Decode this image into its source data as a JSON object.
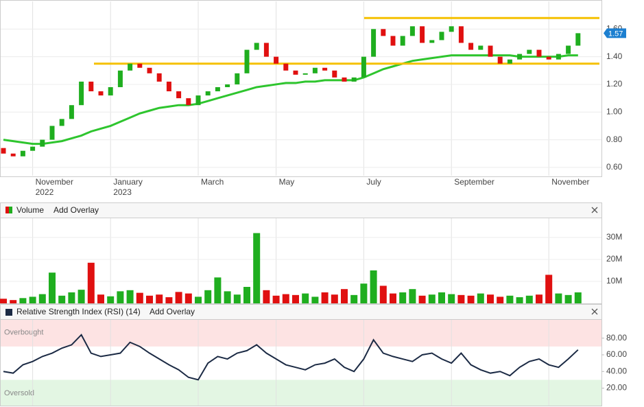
{
  "chart_data": [
    {
      "type": "candlestick",
      "categories": [
        null,
        null,
        null,
        "November 2022",
        null,
        null,
        null,
        null,
        null,
        null,
        null,
        "January 2023",
        null,
        null,
        null,
        null,
        null,
        null,
        null,
        null,
        "March",
        null,
        null,
        null,
        null,
        null,
        null,
        null,
        "May",
        null,
        null,
        null,
        null,
        null,
        null,
        null,
        null,
        "July",
        null,
        null,
        null,
        null,
        null,
        null,
        null,
        null,
        "September",
        null,
        null,
        null,
        null,
        null,
        null,
        null,
        null,
        null,
        "November",
        null,
        null,
        null
      ],
      "open": [
        0.74,
        0.7,
        0.68,
        0.72,
        0.75,
        0.8,
        0.9,
        0.95,
        1.05,
        1.22,
        1.15,
        1.12,
        1.18,
        1.3,
        1.35,
        1.32,
        1.28,
        1.22,
        1.15,
        1.1,
        1.05,
        1.12,
        1.15,
        1.18,
        1.2,
        1.28,
        1.45,
        1.5,
        1.4,
        1.35,
        1.3,
        1.27,
        1.28,
        1.32,
        1.3,
        1.25,
        1.22,
        1.25,
        1.4,
        1.6,
        1.55,
        1.48,
        1.55,
        1.62,
        1.5,
        1.52,
        1.58,
        1.62,
        1.5,
        1.45,
        1.48,
        1.4,
        1.35,
        1.38,
        1.42,
        1.45,
        1.4,
        1.38,
        1.42,
        1.48
      ],
      "close": [
        0.7,
        0.68,
        0.72,
        0.75,
        0.8,
        0.9,
        0.95,
        1.05,
        1.22,
        1.15,
        1.12,
        1.18,
        1.3,
        1.35,
        1.32,
        1.28,
        1.22,
        1.15,
        1.1,
        1.05,
        1.12,
        1.15,
        1.18,
        1.2,
        1.28,
        1.45,
        1.5,
        1.4,
        1.35,
        1.3,
        1.27,
        1.28,
        1.32,
        1.3,
        1.25,
        1.22,
        1.25,
        1.4,
        1.6,
        1.55,
        1.48,
        1.55,
        1.62,
        1.5,
        1.52,
        1.58,
        1.62,
        1.5,
        1.45,
        1.48,
        1.4,
        1.35,
        1.38,
        1.42,
        1.45,
        1.4,
        1.38,
        1.42,
        1.48,
        1.57
      ],
      "up_color": "#1fae1f",
      "down_color": "#e01010",
      "ma": {
        "color": "#2ec52e",
        "values": [
          0.8,
          0.79,
          0.78,
          0.77,
          0.77,
          0.78,
          0.79,
          0.81,
          0.83,
          0.86,
          0.88,
          0.9,
          0.93,
          0.96,
          0.99,
          1.01,
          1.03,
          1.04,
          1.05,
          1.05,
          1.06,
          1.08,
          1.1,
          1.12,
          1.14,
          1.16,
          1.18,
          1.19,
          1.2,
          1.21,
          1.21,
          1.22,
          1.22,
          1.23,
          1.23,
          1.23,
          1.23,
          1.25,
          1.28,
          1.31,
          1.33,
          1.35,
          1.37,
          1.38,
          1.39,
          1.4,
          1.41,
          1.41,
          1.41,
          1.41,
          1.41,
          1.41,
          1.41,
          1.4,
          1.4,
          1.4,
          1.4,
          1.4,
          1.41,
          1.41
        ]
      },
      "levels": [
        {
          "value": 1.35,
          "color": "#f5c000"
        },
        {
          "value": 1.68,
          "color": "#f5c000"
        }
      ],
      "last_value_label": "1.57",
      "last_color": "#1c7fd0",
      "ylim": [
        0.54,
        1.8
      ],
      "yticks": [
        {
          "value": 0.6,
          "label": "0.60"
        },
        {
          "value": 0.8,
          "label": "0.80"
        },
        {
          "value": 1.0,
          "label": "1.00"
        },
        {
          "value": 1.2,
          "label": "1.20"
        },
        {
          "value": 1.4,
          "label": "1.40"
        },
        {
          "value": 1.6,
          "label": "1.60"
        }
      ],
      "grid": true
    },
    {
      "type": "bar",
      "title": "Volume",
      "overlay_button": "Add Overlay",
      "values": [
        2100000,
        1500000,
        2400000,
        3000000,
        4200000,
        14000000,
        3500000,
        5000000,
        6200000,
        18500000,
        4000000,
        3200000,
        5500000,
        6000000,
        4800000,
        3500000,
        4000000,
        2800000,
        5200000,
        4500000,
        3000000,
        6000000,
        11800000,
        5500000,
        4000000,
        7500000,
        32000000,
        6000000,
        3500000,
        4200000,
        3800000,
        4500000,
        3000000,
        5000000,
        4000000,
        6500000,
        3800000,
        9000000,
        15000000,
        8000000,
        4500000,
        5000000,
        6500000,
        3500000,
        4000000,
        5000000,
        4200000,
        3800000,
        3500000,
        4500000,
        4000000,
        3000000,
        3500000,
        2800000,
        3500000,
        4000000,
        13000000,
        4500000,
        3800000,
        5000000
      ],
      "ylim": [
        0,
        38750000
      ],
      "yticks": [
        {
          "value": 10000000,
          "label": "10M"
        },
        {
          "value": 20000000,
          "label": "20M"
        },
        {
          "value": 30000000,
          "label": "30M"
        }
      ]
    },
    {
      "type": "line",
      "title": "Relative Strength Index (RSI) (14)",
      "overlay_button": "Add Overlay",
      "values": [
        40,
        38,
        48,
        52,
        58,
        62,
        68,
        72,
        84,
        62,
        58,
        60,
        62,
        75,
        70,
        62,
        55,
        48,
        42,
        33,
        30,
        50,
        58,
        55,
        62,
        65,
        72,
        62,
        55,
        48,
        45,
        42,
        48,
        50,
        55,
        45,
        40,
        55,
        78,
        62,
        58,
        55,
        52,
        60,
        62,
        55,
        50,
        62,
        48,
        42,
        38,
        40,
        35,
        45,
        52,
        55,
        48,
        45,
        55,
        66
      ],
      "color": "#1b2a44",
      "overbought": {
        "value": 70,
        "label": "Overbought"
      },
      "oversold": {
        "value": 30,
        "label": "Oversold"
      },
      "ylim": [
        -1,
        102
      ],
      "yticks": [
        {
          "value": 20,
          "label": "20.00"
        },
        {
          "value": 40,
          "label": "40.00"
        },
        {
          "value": 60,
          "label": "60.00"
        },
        {
          "value": 80,
          "label": "80.00"
        }
      ]
    }
  ]
}
